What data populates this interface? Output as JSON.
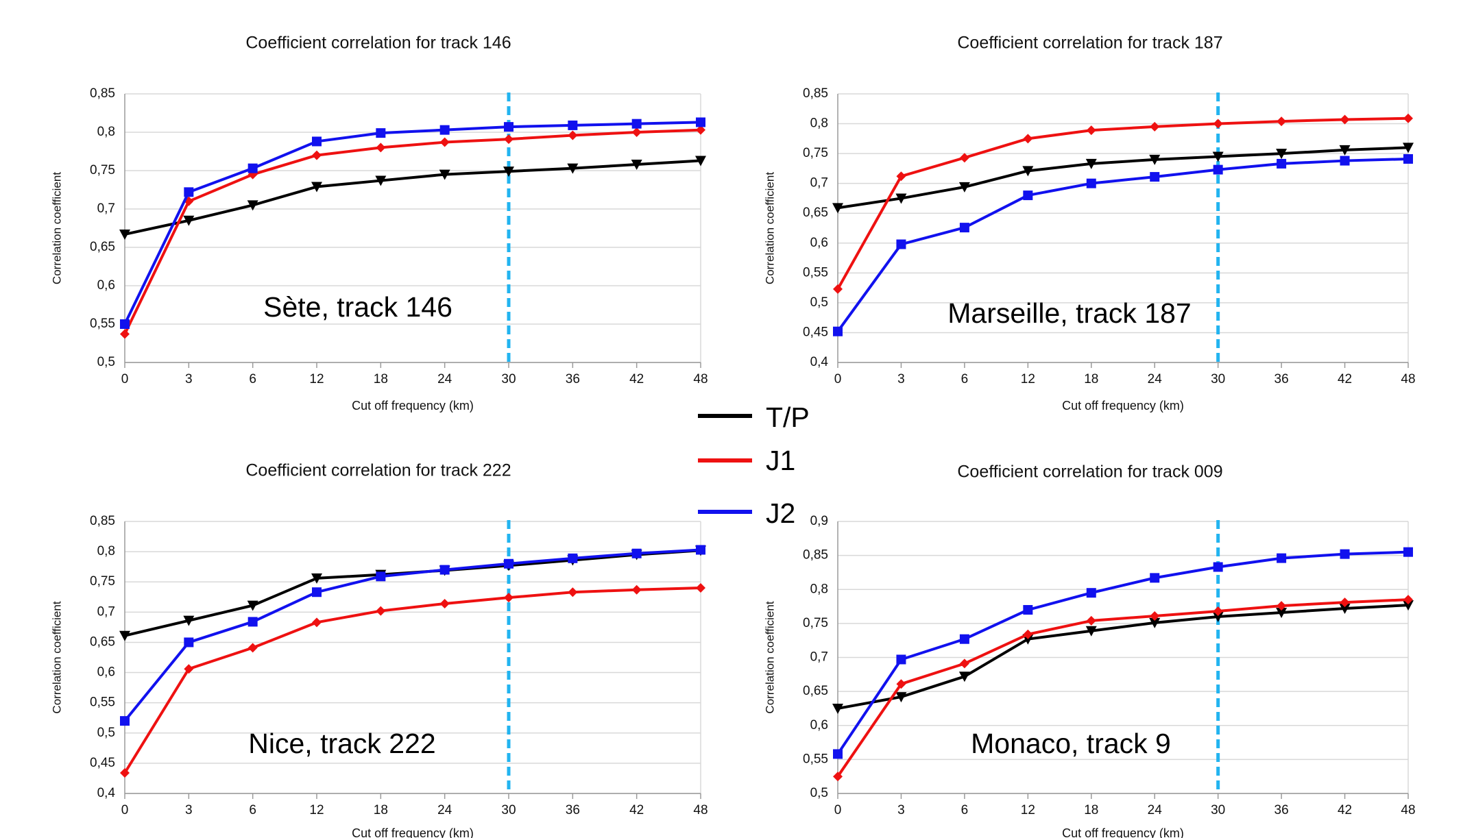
{
  "legend": {
    "entries": [
      {
        "label": "T/P",
        "color": "#000000"
      },
      {
        "label": "J1",
        "color": "#ee1111"
      },
      {
        "label": "J2",
        "color": "#1111ee"
      }
    ]
  },
  "colors": {
    "grid": "#d8d8d8",
    "axis": "#9a9a9a",
    "cutoff_line": "#22b4f0"
  },
  "chart_data": [
    {
      "type": "line",
      "title": "Coefficient correlation for track 146",
      "annotation": "Sète, track 146",
      "xlabel": "Cut off frequency (km)",
      "ylabel": "Correlation coefficient",
      "categories": [
        "0",
        "3",
        "6",
        "12",
        "18",
        "24",
        "30",
        "36",
        "42",
        "48"
      ],
      "ylim": [
        0.5,
        0.85
      ],
      "yticks": [
        0.5,
        0.55,
        0.6,
        0.65,
        0.7,
        0.75,
        0.8,
        0.85
      ],
      "ytick_labels": [
        "0,5",
        "0,55",
        "0,6",
        "0,65",
        "0,7",
        "0,75",
        "0,8",
        "0,85"
      ],
      "cutoff_marker": "30",
      "grid": "horizontal",
      "series": [
        {
          "name": "T/P",
          "values": [
            0.667,
            0.685,
            0.705,
            0.729,
            0.737,
            0.745,
            0.749,
            0.753,
            0.758,
            0.763
          ]
        },
        {
          "name": "J1",
          "values": [
            0.537,
            0.71,
            0.745,
            0.77,
            0.78,
            0.787,
            0.791,
            0.796,
            0.8,
            0.803
          ]
        },
        {
          "name": "J2",
          "values": [
            0.55,
            0.722,
            0.753,
            0.788,
            0.799,
            0.803,
            0.807,
            0.809,
            0.811,
            0.813
          ]
        }
      ]
    },
    {
      "type": "line",
      "title": "Coefficient correlation for track 187",
      "annotation": "Marseille, track 187",
      "xlabel": "Cut off frequency (km)",
      "ylabel": "Correlation coefficient",
      "categories": [
        "0",
        "3",
        "6",
        "12",
        "18",
        "24",
        "30",
        "36",
        "42",
        "48"
      ],
      "ylim": [
        0.4,
        0.85
      ],
      "yticks": [
        0.4,
        0.45,
        0.5,
        0.55,
        0.6,
        0.65,
        0.7,
        0.75,
        0.8,
        0.85
      ],
      "ytick_labels": [
        "0,4",
        "0,45",
        "0,5",
        "0,55",
        "0,6",
        "0,65",
        "0,7",
        "0,75",
        "0,8",
        "0,85"
      ],
      "cutoff_marker": "30",
      "grid": "horizontal",
      "series": [
        {
          "name": "T/P",
          "values": [
            0.659,
            0.675,
            0.694,
            0.721,
            0.733,
            0.74,
            0.745,
            0.75,
            0.756,
            0.76
          ]
        },
        {
          "name": "J1",
          "values": [
            0.523,
            0.712,
            0.743,
            0.775,
            0.789,
            0.795,
            0.8,
            0.804,
            0.807,
            0.809
          ]
        },
        {
          "name": "J2",
          "values": [
            0.452,
            0.598,
            0.626,
            0.68,
            0.7,
            0.711,
            0.723,
            0.733,
            0.738,
            0.741
          ]
        }
      ]
    },
    {
      "type": "line",
      "title": "Coefficient correlation for track 222",
      "annotation": "Nice, track 222",
      "xlabel": "Cut off frequency (km)",
      "ylabel": "Correlation coefficient",
      "categories": [
        "0",
        "3",
        "6",
        "12",
        "18",
        "24",
        "30",
        "36",
        "42",
        "48"
      ],
      "ylim": [
        0.4,
        0.85
      ],
      "yticks": [
        0.4,
        0.45,
        0.5,
        0.55,
        0.6,
        0.65,
        0.7,
        0.75,
        0.8,
        0.85
      ],
      "ytick_labels": [
        "0,4",
        "0,45",
        "0,5",
        "0,55",
        "0,6",
        "0,65",
        "0,7",
        "0,75",
        "0,8",
        "0,85"
      ],
      "cutoff_marker": "30",
      "grid": "horizontal",
      "series": [
        {
          "name": "T/P",
          "values": [
            0.661,
            0.686,
            0.711,
            0.756,
            0.762,
            0.769,
            0.777,
            0.786,
            0.795,
            0.802
          ]
        },
        {
          "name": "J1",
          "values": [
            0.434,
            0.606,
            0.641,
            0.683,
            0.702,
            0.714,
            0.724,
            0.733,
            0.737,
            0.74
          ]
        },
        {
          "name": "J2",
          "values": [
            0.52,
            0.65,
            0.684,
            0.733,
            0.759,
            0.77,
            0.78,
            0.789,
            0.797,
            0.803
          ]
        }
      ]
    },
    {
      "type": "line",
      "title": "Coefficient correlation for track 009",
      "annotation": "Monaco, track 9",
      "xlabel": "Cut off frequency (km)",
      "ylabel": "Correlation coefficient",
      "categories": [
        "0",
        "3",
        "6",
        "12",
        "18",
        "24",
        "30",
        "36",
        "42",
        "48"
      ],
      "ylim": [
        0.5,
        0.9
      ],
      "yticks": [
        0.5,
        0.55,
        0.6,
        0.65,
        0.7,
        0.75,
        0.8,
        0.85,
        0.9
      ],
      "ytick_labels": [
        "0,5",
        "0,55",
        "0,6",
        "0,65",
        "0,7",
        "0,75",
        "0,8",
        "0,85",
        "0,9"
      ],
      "cutoff_marker": "30",
      "grid": "horizontal",
      "series": [
        {
          "name": "T/P",
          "values": [
            0.625,
            0.642,
            0.672,
            0.727,
            0.739,
            0.751,
            0.76,
            0.766,
            0.772,
            0.777
          ]
        },
        {
          "name": "J1",
          "values": [
            0.525,
            0.661,
            0.691,
            0.734,
            0.754,
            0.761,
            0.768,
            0.776,
            0.781,
            0.785
          ]
        },
        {
          "name": "J2",
          "values": [
            0.558,
            0.697,
            0.727,
            0.77,
            0.795,
            0.817,
            0.833,
            0.846,
            0.852,
            0.855
          ]
        }
      ]
    }
  ]
}
